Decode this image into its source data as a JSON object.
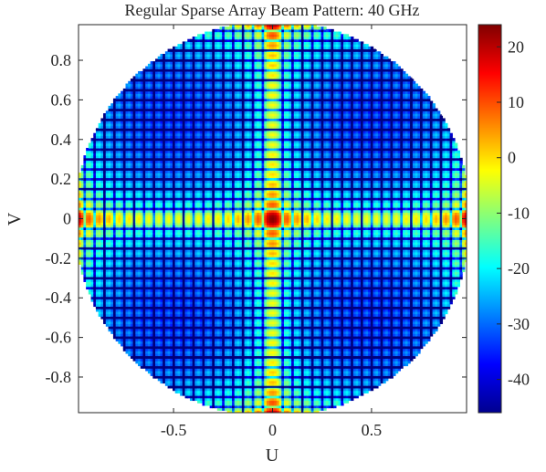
{
  "chart_data": {
    "type": "heatmap",
    "title": "Regular Sparse Array Beam Pattern: 40 GHz",
    "xlabel": "U",
    "ylabel": "V",
    "xlim": [
      -0.98,
      0.98
    ],
    "ylim": [
      -0.98,
      0.98
    ],
    "x_ticks": [
      -0.5,
      0,
      0.5
    ],
    "x_tick_labels": [
      "-0.5",
      "0",
      "0.5"
    ],
    "y_ticks": [
      0.8,
      0.6,
      0.4,
      0.2,
      0,
      -0.2,
      -0.4,
      -0.6,
      -0.8
    ],
    "y_tick_labels": [
      "0.8",
      "0.6",
      "0.4",
      "0.2",
      "0",
      "-0.2",
      "-0.4",
      "-0.6",
      "-0.8"
    ],
    "region": "unit circle (u^2 + v^2 <= 1)",
    "grating_lobe_u": [
      -0.5,
      0,
      0.5
    ],
    "grating_lobe_v": [
      -0.5,
      0,
      0.5
    ],
    "peak_value_db": 23,
    "colorbar": {
      "colormap": "jet",
      "range": [
        -46,
        24
      ],
      "ticks": [
        20,
        10,
        0,
        -10,
        -20,
        -30,
        -40
      ],
      "tick_labels": [
        "20",
        "10",
        "0",
        "-10",
        "-20",
        "-30",
        "-40"
      ]
    },
    "grid": false
  }
}
